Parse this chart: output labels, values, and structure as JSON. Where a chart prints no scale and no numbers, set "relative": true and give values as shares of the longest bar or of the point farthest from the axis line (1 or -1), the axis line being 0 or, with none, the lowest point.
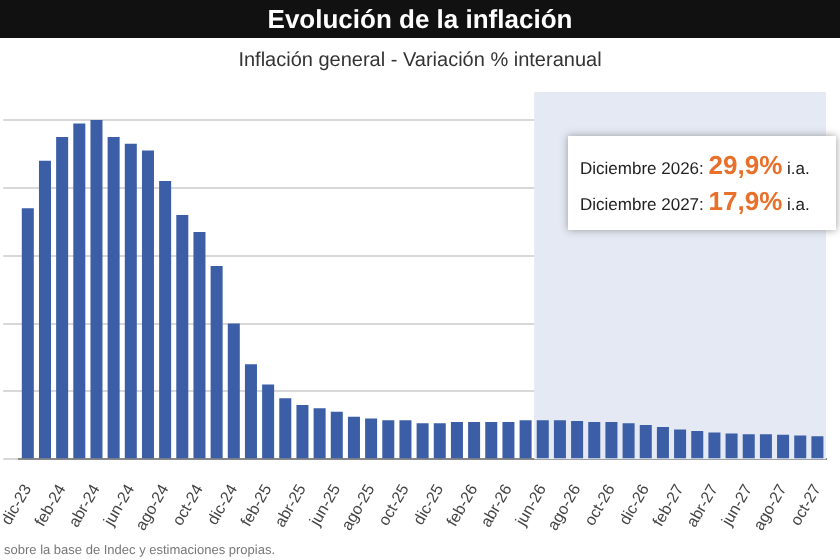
{
  "chart_data": {
    "type": "bar",
    "title": "Evolución de la inflación",
    "subtitle": "Inflación general - Variación % interanual",
    "categories": [
      "dic-23",
      null,
      "feb-24",
      null,
      "abr-24",
      null,
      "jun-24",
      null,
      "ago-24",
      null,
      "oct-24",
      null,
      "dic-24",
      null,
      "feb-25",
      null,
      "abr-25",
      null,
      "jun-25",
      null,
      "ago-25",
      null,
      "oct-25",
      null,
      "dic-25",
      null,
      "feb-26",
      null,
      "abr-26",
      null,
      "jun-26",
      null,
      "ago-26",
      null,
      "oct-26",
      null,
      "dic-26",
      null,
      "feb-27",
      null,
      "abr-27",
      null,
      "jun-27",
      null,
      "ago-27",
      null,
      "oct-27"
    ],
    "values": [
      0.74,
      0.88,
      0.95,
      0.99,
      1,
      0.95,
      0.93,
      0.91,
      0.82,
      0.72,
      0.67,
      0.57,
      0.4,
      0.28,
      0.22,
      0.18,
      0.16,
      0.15,
      0.14,
      0.125,
      0.12,
      0.115,
      0.115,
      0.106,
      0.106,
      0.11,
      0.11,
      0.11,
      0.11,
      0.115,
      0.115,
      0.115,
      0.113,
      0.11,
      0.11,
      0.106,
      0.101,
      0.095,
      0.088,
      0.083,
      0.079,
      0.076,
      0.074,
      0.074,
      0.072,
      0.07,
      0.068
    ],
    "color": "#3b5ea6",
    "relative": true,
    "grid": "y",
    "bands": [
      {
        "axis": "x",
        "from": "jun-26",
        "to": "oct-27",
        "color": "#e4e9f4"
      }
    ],
    "annotations": [
      "Diciembre 2026: 29,9% i.a.",
      "Diciembre 2027: 17,9% i.a.",
      "sobre la base de Indec y estimaciones propias."
    ]
  }
}
